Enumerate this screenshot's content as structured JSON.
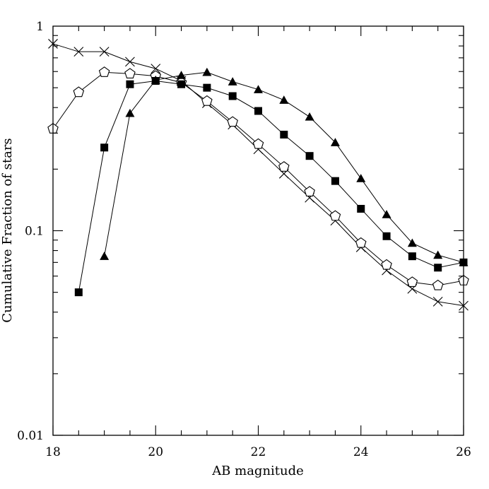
{
  "chart_data": {
    "type": "line",
    "title": "",
    "xlabel": "AB magnitude",
    "ylabel": "Cumulative Fraction of stars",
    "xlim": [
      18,
      26
    ],
    "ylim": [
      0.01,
      1
    ],
    "yscale": "log",
    "grid": false,
    "x_tick_labels": [
      "18",
      "20",
      "22",
      "24",
      "26"
    ],
    "y_tick_labels": [
      "0.01",
      "0.1",
      "1"
    ],
    "series": [
      {
        "name": "crosses",
        "marker": "cross",
        "x": [
          18,
          18.5,
          19,
          19.5,
          20,
          20.5,
          21,
          21.5,
          22,
          22.5,
          23,
          23.5,
          24,
          24.5,
          25,
          25.5,
          26
        ],
        "values": [
          0.82,
          0.75,
          0.75,
          0.67,
          0.62,
          0.54,
          0.42,
          0.33,
          0.25,
          0.19,
          0.145,
          0.112,
          0.083,
          0.064,
          0.052,
          0.045,
          0.043
        ]
      },
      {
        "name": "open pentagons",
        "marker": "pentagon",
        "x": [
          18,
          18.5,
          19,
          19.5,
          20,
          20.5,
          21,
          21.5,
          22,
          22.5,
          23,
          23.5,
          24,
          24.5,
          25,
          25.5,
          26
        ],
        "values": [
          0.315,
          0.475,
          0.595,
          0.585,
          0.57,
          0.53,
          0.43,
          0.34,
          0.265,
          0.205,
          0.155,
          0.118,
          0.087,
          0.068,
          0.056,
          0.054,
          0.057
        ]
      },
      {
        "name": "filled squares",
        "marker": "square",
        "x": [
          18.5,
          19,
          19.5,
          20,
          20.5,
          21,
          21.5,
          22,
          22.5,
          23,
          23.5,
          24,
          24.5,
          25,
          25.5,
          26
        ],
        "values": [
          0.05,
          0.255,
          0.52,
          0.54,
          0.52,
          0.5,
          0.455,
          0.385,
          0.295,
          0.232,
          0.175,
          0.128,
          0.094,
          0.075,
          0.066,
          0.07
        ]
      },
      {
        "name": "filled triangles",
        "marker": "triangle",
        "x": [
          19,
          19.5,
          20,
          20.5,
          21,
          21.5,
          22,
          22.5,
          23,
          23.5,
          24,
          24.5,
          25,
          25.5,
          26
        ],
        "values": [
          0.075,
          0.375,
          0.545,
          0.575,
          0.595,
          0.535,
          0.49,
          0.435,
          0.36,
          0.27,
          0.18,
          0.12,
          0.087,
          0.076,
          0.07
        ]
      }
    ]
  }
}
